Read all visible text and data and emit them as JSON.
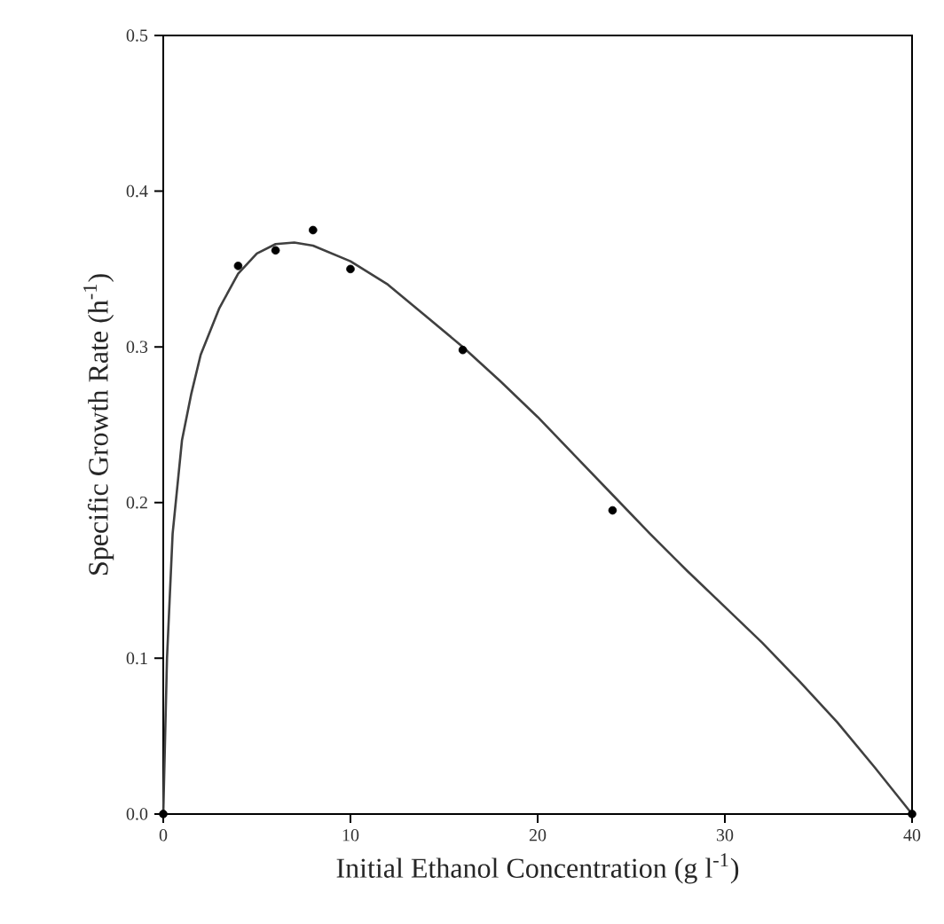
{
  "chart_data": {
    "type": "scatter",
    "xlabel": "Initial Ethanol Concentration (g l$^{-1}$)",
    "ylabel": "Specific Growth Rate (h$^{-1}$)",
    "xlim": [
      0,
      40
    ],
    "ylim": [
      0,
      0.5
    ],
    "xticks": [
      0,
      10,
      20,
      30,
      40
    ],
    "yticks": [
      {
        "value": 0,
        "label": "0.0"
      },
      0.1,
      0.2,
      0.3,
      0.4,
      0.5
    ],
    "series": [
      {
        "marker": "circle",
        "color": "#000000",
        "x": [
          0,
          4,
          6,
          8,
          10,
          16,
          24,
          40
        ],
        "values": [
          0,
          0.352,
          0.362,
          0.375,
          0.35,
          0.298,
          0.195,
          0
        ]
      },
      {
        "type": "line",
        "marker": "none",
        "line_style": "solid",
        "color": "#404040",
        "x": [
          0,
          0.1,
          0.2,
          0.5,
          1,
          1.5,
          2,
          3,
          4,
          5,
          6,
          7,
          8,
          10,
          12,
          14,
          16,
          18,
          20,
          22,
          24,
          26,
          28,
          30,
          32,
          34,
          36,
          38,
          40
        ],
        "values": [
          0,
          0.05,
          0.1,
          0.18,
          0.24,
          0.27,
          0.295,
          0.325,
          0.347,
          0.36,
          0.366,
          0.367,
          0.365,
          0.355,
          0.34,
          0.32,
          0.3,
          0.278,
          0.255,
          0.23,
          0.205,
          0.18,
          0.156,
          0.133,
          0.11,
          0.085,
          0.059,
          0.03,
          0
        ]
      }
    ]
  }
}
